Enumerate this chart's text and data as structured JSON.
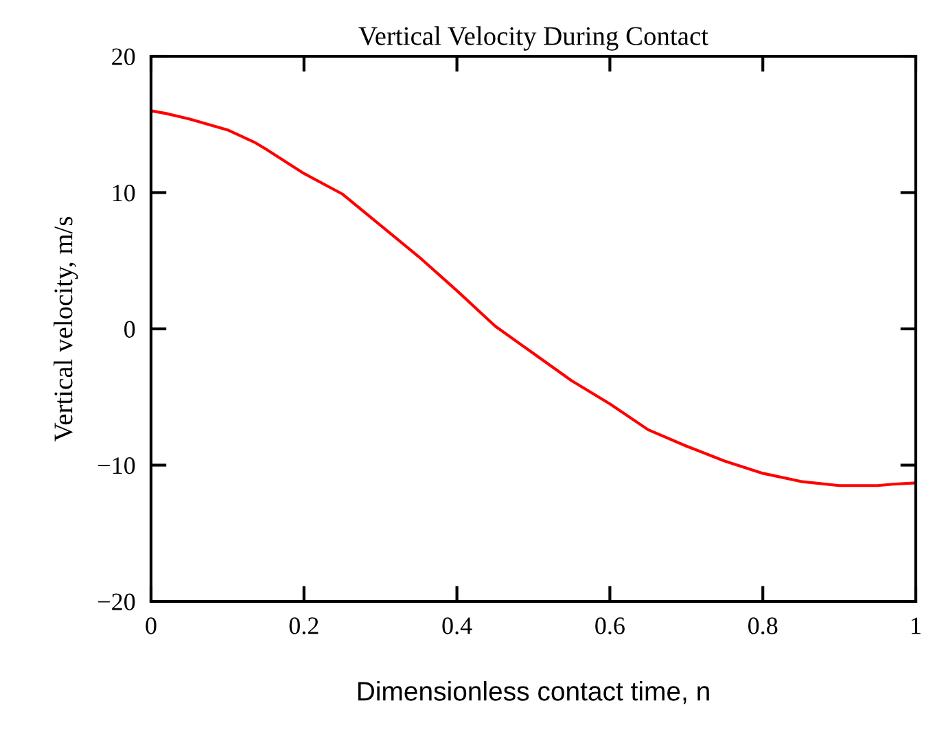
{
  "chart_data": {
    "type": "line",
    "title": "Vertical Velocity During Contact",
    "xlabel": "Dimensionless contact time, n",
    "ylabel": "Vertical velocity, m/s",
    "x": [
      0,
      0.02,
      0.05,
      0.1,
      0.135,
      0.15,
      0.2,
      0.25,
      0.3,
      0.35,
      0.4,
      0.45,
      0.5,
      0.55,
      0.6,
      0.65,
      0.7,
      0.75,
      0.8,
      0.85,
      0.9,
      0.95,
      0.97,
      1
    ],
    "series": [
      {
        "color": "#ff0000",
        "values": [
          16.0,
          15.8,
          15.4,
          14.6,
          13.7,
          13.2,
          11.4,
          9.9,
          7.6,
          5.3,
          2.8,
          0.2,
          -1.8,
          -3.8,
          -5.5,
          -7.4,
          -8.6,
          -9.7,
          -10.6,
          -11.2,
          -11.5,
          -11.5,
          -11.4,
          -11.3
        ]
      }
    ],
    "xlim": [
      0,
      1
    ],
    "ylim": [
      -20,
      20
    ],
    "xticks": [
      0,
      0.2,
      0.4,
      0.6,
      0.8,
      1
    ],
    "yticks": [
      {
        "value": -20,
        "label": "−20"
      },
      {
        "value": -10,
        "label": "−10"
      },
      0,
      10,
      20
    ],
    "grid": false,
    "legend": false,
    "marker": "none",
    "line_style": "solid"
  }
}
